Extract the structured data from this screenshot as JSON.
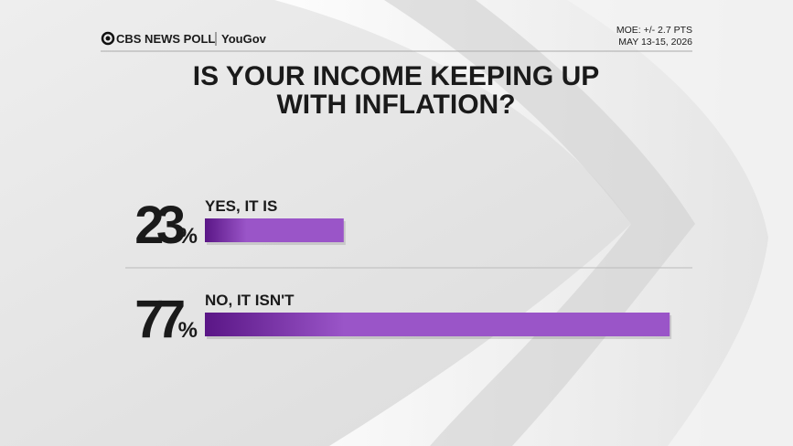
{
  "header": {
    "brand": "CBS NEWS POLL",
    "partner": "YouGov",
    "moe": "MOE: +/- 2.7 PTS",
    "dates": "MAY 13-15, 2026"
  },
  "chart_data": {
    "type": "hbar",
    "title": "IS YOUR INCOME KEEPING UP WITH INFLATION?",
    "categories": [
      "YES, IT IS",
      "NO, IT ISN'T"
    ],
    "values": [
      23,
      77
    ],
    "value_labels": [
      "23%",
      "77%"
    ],
    "color": [
      "#5a1686",
      "#9a55c8"
    ]
  }
}
